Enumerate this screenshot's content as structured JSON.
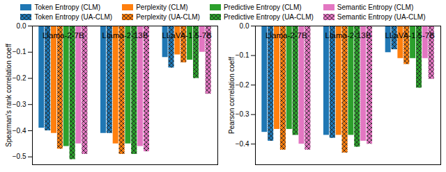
{
  "chart_data": [
    {
      "type": "bar",
      "legend": "top",
      "categories": [
        "Llama-2-7B",
        "Llama-2-13B",
        "LLaVA-1.5-7B"
      ],
      "y_label": "Spearman's rank correlation coeff",
      "ylim": [
        -0.53,
        0
      ],
      "yticks": [
        {
          "value": 0,
          "label": "0.0"
        },
        {
          "value": -0.1,
          "label": "−0.1"
        },
        {
          "value": -0.2,
          "label": "−0.2"
        },
        {
          "value": -0.3,
          "label": "−0.3"
        },
        {
          "value": -0.4,
          "label": "−0.4"
        },
        {
          "value": -0.5,
          "label": "−0.5"
        }
      ],
      "series": [
        {
          "name": "Token Entropy (CLM)",
          "color": "#1f77b4",
          "values": [
            -0.39,
            -0.41,
            -0.12
          ]
        },
        {
          "name": "Token Entropy (UA-CLM)",
          "color": "#1f77b4",
          "values": [
            -0.4,
            -0.41,
            -0.16
          ]
        },
        {
          "name": "Perplexity (CLM)",
          "color": "#ff7f0e",
          "values": [
            -0.41,
            -0.45,
            -0.11
          ]
        },
        {
          "name": "Perplexity (UA-CLM)",
          "color": "#ff7f0e",
          "values": [
            -0.47,
            -0.49,
            -0.14
          ]
        },
        {
          "name": "Predictive Entropy (CLM)",
          "color": "#2ca02c",
          "values": [
            -0.46,
            -0.45,
            -0.13
          ]
        },
        {
          "name": "Predictive Entropy (UA-CLM)",
          "color": "#2ca02c",
          "values": [
            -0.51,
            -0.49,
            -0.2
          ]
        },
        {
          "name": "Semantic Entropy (CLM)",
          "color": "#e377c2",
          "values": [
            -0.45,
            -0.46,
            -0.1
          ]
        },
        {
          "name": "Semantic Entropy (UA-CLM)",
          "color": "#e377c2",
          "values": [
            -0.49,
            -0.48,
            -0.26
          ]
        }
      ]
    },
    {
      "type": "bar",
      "categories": [
        "Llama-2-7B",
        "Llama-2-13B",
        "LLaVA-1.5-7B"
      ],
      "y_label": "Pearson correlation coeff",
      "ylim": [
        -0.47,
        0
      ],
      "yticks": [
        {
          "value": 0,
          "label": "0.0"
        },
        {
          "value": -0.1,
          "label": "−0.1"
        },
        {
          "value": -0.2,
          "label": "−0.2"
        },
        {
          "value": -0.3,
          "label": "−0.3"
        },
        {
          "value": -0.4,
          "label": "−0.4"
        }
      ],
      "series": [
        {
          "name": "Token Entropy (CLM)",
          "color": "#1f77b4",
          "values": [
            -0.36,
            -0.37,
            -0.09
          ]
        },
        {
          "name": "Token Entropy (UA-CLM)",
          "color": "#1f77b4",
          "values": [
            -0.39,
            -0.38,
            -0.08
          ]
        },
        {
          "name": "Perplexity (CLM)",
          "color": "#ff7f0e",
          "values": [
            -0.35,
            -0.37,
            -0.11
          ]
        },
        {
          "name": "Perplexity (UA-CLM)",
          "color": "#ff7f0e",
          "values": [
            -0.42,
            -0.43,
            -0.13
          ]
        },
        {
          "name": "Predictive Entropy (CLM)",
          "color": "#2ca02c",
          "values": [
            -0.35,
            -0.37,
            -0.11
          ]
        },
        {
          "name": "Predictive Entropy (UA-CLM)",
          "color": "#2ca02c",
          "values": [
            -0.37,
            -0.41,
            -0.21
          ]
        },
        {
          "name": "Semantic Entropy (CLM)",
          "color": "#e377c2",
          "values": [
            -0.4,
            -0.39,
            -0.11
          ]
        },
        {
          "name": "Semantic Entropy (UA-CLM)",
          "color": "#e377c2",
          "values": [
            -0.42,
            -0.4,
            -0.18
          ]
        }
      ]
    }
  ]
}
